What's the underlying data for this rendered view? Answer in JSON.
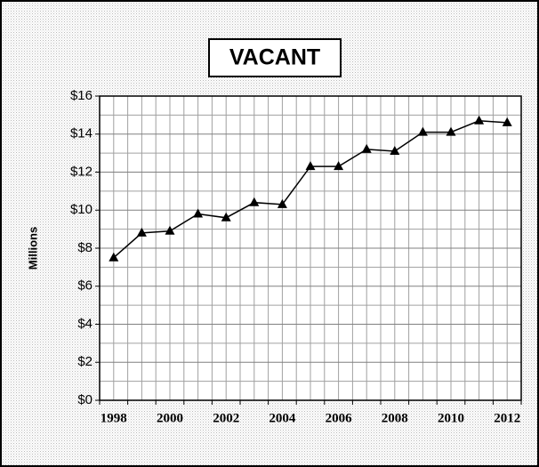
{
  "chart_data": {
    "type": "line",
    "title": "VACANT",
    "y_label": "Millions",
    "categories": [
      "1998",
      null,
      "2000",
      null,
      "2002",
      null,
      "2004",
      null,
      "2006",
      null,
      "2008",
      null,
      "2010",
      null,
      "2012"
    ],
    "series": [
      {
        "name": "VACANT",
        "color": "#000000",
        "values": [
          7.5,
          8.8,
          8.9,
          9.8,
          9.6,
          10.4,
          10.3,
          12.3,
          12.3,
          13.2,
          13.1,
          14.1,
          14.1,
          14.7,
          14.6
        ]
      }
    ],
    "ylim": [
      0,
      16
    ],
    "yticks": [
      {
        "value": 0,
        "label": "$0"
      },
      {
        "value": 2,
        "label": "$2"
      },
      {
        "value": 4,
        "label": "$4"
      },
      {
        "value": 6,
        "label": "$6"
      },
      {
        "value": 8,
        "label": "$8"
      },
      {
        "value": 10,
        "label": "$10"
      },
      {
        "value": 12,
        "label": "$12"
      },
      {
        "value": 14,
        "label": "$14"
      },
      {
        "value": 16,
        "label": "$16"
      }
    ],
    "grid": true,
    "marker": "triangle"
  }
}
